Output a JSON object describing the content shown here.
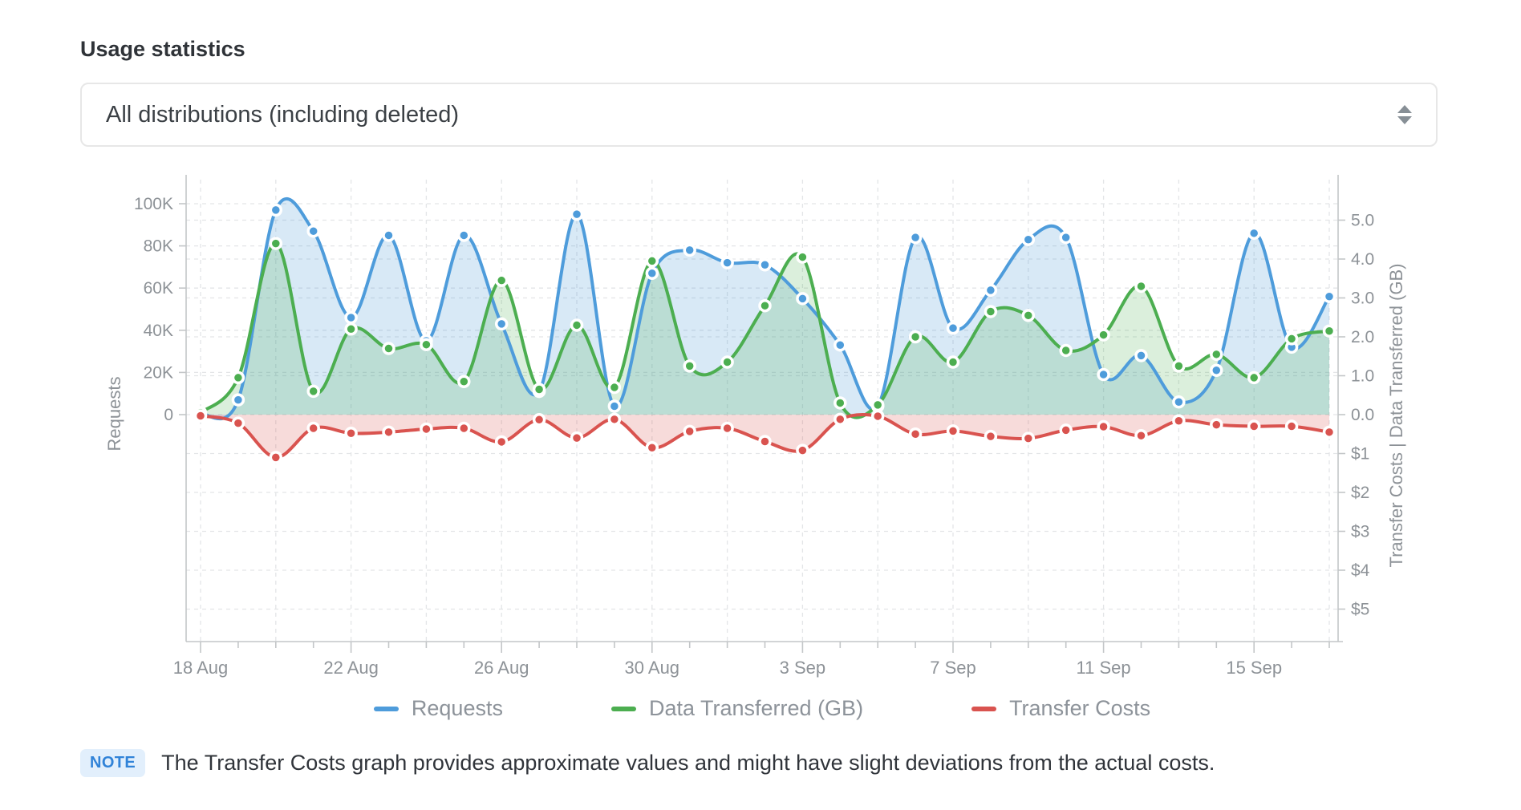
{
  "page": {
    "title": "Usage statistics"
  },
  "filter": {
    "selected": "All distributions (including deleted)"
  },
  "chart_data": {
    "type": "line",
    "x": [
      "18 Aug",
      "19 Aug",
      "20 Aug",
      "21 Aug",
      "22 Aug",
      "23 Aug",
      "24 Aug",
      "25 Aug",
      "26 Aug",
      "27 Aug",
      "28 Aug",
      "29 Aug",
      "30 Aug",
      "31 Aug",
      "1 Sep",
      "2 Sep",
      "3 Sep",
      "4 Sep",
      "5 Sep",
      "6 Sep",
      "7 Sep",
      "8 Sep",
      "9 Sep",
      "10 Sep",
      "11 Sep",
      "12 Sep",
      "13 Sep",
      "14 Sep",
      "15 Sep",
      "16 Sep",
      "17 Sep"
    ],
    "x_tick_labels": [
      "18 Aug",
      "22 Aug",
      "26 Aug",
      "30 Aug",
      "3 Sep",
      "7 Sep",
      "11 Sep",
      "15 Sep"
    ],
    "left_axis": {
      "label": "Requests",
      "ticks": [
        "100K",
        "80K",
        "60K",
        "40K",
        "20K",
        "0"
      ],
      "range": [
        0,
        100000
      ]
    },
    "right_axis": {
      "label": "Transfer Costs | Data Transferred (GB)",
      "gb_ticks": [
        "5.0",
        "4.0",
        "3.0",
        "2.0",
        "1.0",
        "0.0"
      ],
      "gb_range": [
        0,
        5
      ],
      "cost_ticks": [
        "$1",
        "$2",
        "$3",
        "$4",
        "$5"
      ],
      "cost_range": [
        0,
        5
      ]
    },
    "grid": true,
    "legend_position": "bottom",
    "series": [
      {
        "name": "Requests",
        "axis": "requests",
        "color": "#4e9cdb",
        "values": [
          500,
          7000,
          97000,
          87000,
          46000,
          85000,
          35000,
          85000,
          43000,
          11000,
          95000,
          4000,
          67000,
          78000,
          72000,
          71000,
          55000,
          33000,
          4000,
          84000,
          41000,
          59000,
          83000,
          84000,
          19000,
          28000,
          6000,
          21000,
          86000,
          32000,
          56000
        ]
      },
      {
        "name": "Data Transferred (GB)",
        "axis": "gb",
        "color": "#4cae50",
        "values": [
          0.05,
          0.95,
          4.4,
          0.6,
          2.2,
          1.7,
          1.8,
          0.85,
          3.45,
          0.65,
          2.3,
          0.7,
          3.95,
          1.25,
          1.35,
          2.8,
          4.05,
          0.3,
          0.25,
          2.0,
          1.35,
          2.65,
          2.55,
          1.65,
          2.05,
          3.3,
          1.25,
          1.55,
          0.95,
          1.95,
          2.15
        ]
      },
      {
        "name": "Transfer Costs",
        "axis": "cost",
        "color": "#d9534f",
        "values": [
          0.03,
          0.22,
          1.1,
          0.35,
          0.48,
          0.45,
          0.37,
          0.35,
          0.7,
          0.13,
          0.6,
          0.12,
          0.85,
          0.43,
          0.35,
          0.69,
          0.92,
          0.12,
          0.04,
          0.5,
          0.42,
          0.56,
          0.61,
          0.4,
          0.31,
          0.54,
          0.16,
          0.26,
          0.3,
          0.3,
          0.45
        ]
      }
    ],
    "colors": {
      "blue_fill": "rgba(78,155,216,0.22)",
      "green_fill": "rgba(76,174,80,0.20)",
      "red_fill": "rgba(217,83,79,0.21)",
      "grid": "#e3e5e7",
      "axis": "#c3c6c8",
      "tick_text": "#8d9297"
    }
  },
  "note": {
    "badge": "NOTE",
    "text": "The Transfer Costs graph provides approximate values and might have slight deviations from the actual costs."
  }
}
